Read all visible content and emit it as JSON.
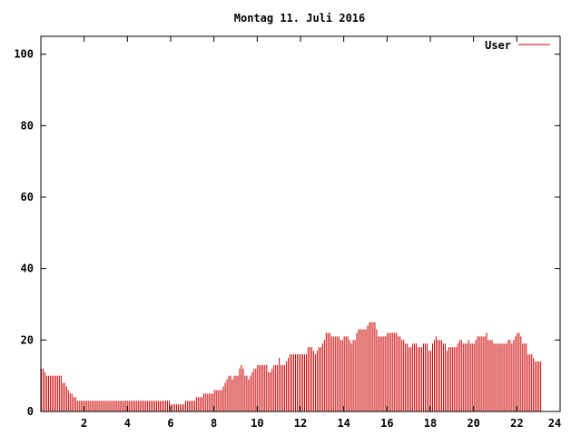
{
  "chart_data": {
    "type": "bar",
    "title": "Montag 11. Juli 2016",
    "xlabel": "",
    "ylabel": "",
    "xlim": [
      0,
      24
    ],
    "ylim": [
      0,
      105
    ],
    "x_ticks": [
      2,
      4,
      6,
      8,
      10,
      12,
      14,
      16,
      18,
      20,
      22,
      24
    ],
    "y_ticks": [
      0,
      20,
      40,
      60,
      80,
      100
    ],
    "grid": false,
    "legend_position": "top-right",
    "series": [
      {
        "name": "User",
        "color": "#cc0000",
        "interval_hours": 0.0833333,
        "values": [
          12,
          12,
          11,
          10,
          10,
          10,
          10,
          10,
          10,
          10,
          10,
          10,
          8,
          8,
          7,
          6,
          5,
          5,
          4,
          4,
          3,
          3,
          3,
          3,
          3,
          3,
          3,
          3,
          3,
          3,
          3,
          3,
          3,
          3,
          3,
          3,
          3,
          3,
          3,
          3,
          3,
          3,
          3,
          3,
          3,
          3,
          3,
          3,
          3,
          3,
          3,
          3,
          3,
          3,
          3,
          3,
          3,
          3,
          3,
          3,
          3,
          3,
          3,
          3,
          3,
          3,
          3,
          3,
          3,
          3,
          3,
          3,
          2,
          2,
          2,
          2,
          2,
          2,
          2,
          2,
          3,
          3,
          3,
          3,
          3,
          3,
          4,
          4,
          4,
          4,
          5,
          5,
          5,
          5,
          5,
          5,
          6,
          6,
          6,
          6,
          6,
          7,
          8,
          9,
          10,
          10,
          9,
          10,
          10,
          10,
          12,
          13,
          12,
          10,
          10,
          9,
          10,
          11,
          12,
          12,
          13,
          13,
          13,
          13,
          13,
          13,
          11,
          11,
          12,
          13,
          13,
          13,
          15,
          13,
          13,
          13,
          14,
          15,
          16,
          16,
          16,
          16,
          16,
          16,
          16,
          16,
          16,
          16,
          18,
          18,
          18,
          17,
          16,
          17,
          18,
          18,
          19,
          20,
          22,
          22,
          22,
          21,
          21,
          21,
          21,
          21,
          20,
          20,
          21,
          21,
          21,
          20,
          19,
          20,
          20,
          22,
          23,
          23,
          23,
          23,
          23,
          24,
          25,
          25,
          25,
          25,
          23,
          21,
          21,
          21,
          21,
          21,
          22,
          22,
          22,
          22,
          22,
          22,
          21,
          21,
          20,
          20,
          19,
          19,
          18,
          18,
          19,
          19,
          19,
          18,
          18,
          18,
          19,
          19,
          19,
          17,
          17,
          19,
          20,
          21,
          20,
          20,
          20,
          19,
          19,
          17,
          18,
          18,
          18,
          18,
          18,
          19,
          20,
          20,
          19,
          19,
          19,
          20,
          19,
          19,
          19,
          20,
          21,
          21,
          21,
          21,
          21,
          22,
          20,
          20,
          20,
          19,
          19,
          19,
          19,
          19,
          19,
          19,
          19,
          20,
          20,
          19,
          20,
          21,
          22,
          22,
          21,
          19,
          19,
          19,
          16,
          16,
          16,
          15,
          14,
          14,
          14,
          14
        ]
      }
    ]
  }
}
